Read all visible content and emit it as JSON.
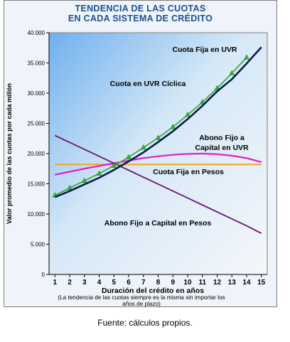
{
  "chart_data": {
    "type": "line",
    "title": [
      "TENDENCIA DE LAS CUOTAS",
      "EN CADA SISTEMA DE CRÉDITO"
    ],
    "xlabel": "Duración del crédito en años",
    "xnote": [
      "(La tendencia de las cuotas siempre es la misma sin importar los",
      "años de plazo)"
    ],
    "ylabel": "Valor promedio de las cuotas por cada millón",
    "ylim": [
      0,
      40000
    ],
    "yticks": [
      "0",
      "5.000",
      "10.000",
      "15.000",
      "20.000",
      "25.000",
      "30.000",
      "35.000",
      "40.000"
    ],
    "x": [
      1,
      2,
      3,
      4,
      5,
      6,
      7,
      8,
      9,
      10,
      11,
      12,
      13,
      14,
      15
    ],
    "grid": false,
    "series": [
      {
        "name": "Cuota Fija en UVR",
        "color": "#3cae3c",
        "marker": "triangle",
        "values": [
          13100,
          14300,
          15500,
          16700,
          18000,
          19400,
          21000,
          22600,
          24400,
          26400,
          28500,
          30800,
          33300,
          35900,
          null
        ]
      },
      {
        "name": "Cuota en UVR Cíclica",
        "color": "#0b1b4d",
        "marker": "none",
        "values": [
          12800,
          13800,
          14900,
          16000,
          17300,
          18700,
          20200,
          21900,
          23700,
          25700,
          27900,
          30300,
          32300,
          34900,
          37600
        ]
      },
      {
        "name": "Abono Fijo a Capital en UVR",
        "color": "#e020c8",
        "marker": "none",
        "values": [
          16500,
          17000,
          17500,
          17950,
          18400,
          18850,
          19250,
          19550,
          19800,
          19950,
          20000,
          19900,
          19650,
          19250,
          18600
        ]
      },
      {
        "name": "Cuota Fija en Pesos",
        "color": "#f5a623",
        "marker": "none",
        "values": [
          18200,
          18200,
          18200,
          18200,
          18200,
          18200,
          18200,
          18200,
          18200,
          18200,
          18200,
          18200,
          18200,
          18200,
          18200
        ]
      },
      {
        "name": "Abono Fijo a Capital en Pesos",
        "color": "#6a1a6e",
        "marker": "none",
        "values": [
          23000,
          21850,
          20700,
          19550,
          18400,
          17250,
          16100,
          14950,
          13800,
          12650,
          11500,
          10350,
          9200,
          8050,
          6800
        ]
      }
    ]
  },
  "caption": "Fuente: cálculos propios."
}
